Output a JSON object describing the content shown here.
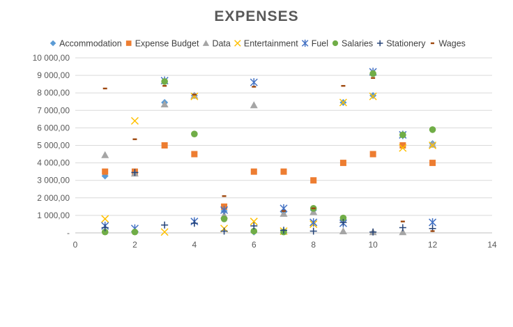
{
  "chart_data": {
    "type": "scatter",
    "title": "EXPENSES",
    "xlabel": "",
    "ylabel": "",
    "xlim": [
      0,
      14
    ],
    "ylim": [
      0,
      10000
    ],
    "x_ticks": [
      "0",
      "2",
      "4",
      "6",
      "8",
      "10",
      "12",
      "14"
    ],
    "y_ticks": [
      "-",
      "1 000,00",
      "2 000,00",
      "3 000,00",
      "4 000,00",
      "5 000,00",
      "6 000,00",
      "7 000,00",
      "8 000,00",
      "9 000,00",
      "10 000,00"
    ],
    "legend_position": "top",
    "grid": true,
    "series": [
      {
        "name": "Accommodation",
        "marker": "diamond",
        "color": "#5b9bd5",
        "points": [
          [
            1,
            3250
          ],
          [
            2,
            3450
          ],
          [
            3,
            7450
          ],
          [
            4,
            7850
          ],
          [
            5,
            1250
          ],
          [
            6,
            50
          ],
          [
            7,
            1200
          ],
          [
            8,
            1300
          ],
          [
            9,
            7450
          ],
          [
            10,
            7850
          ],
          [
            11,
            5600
          ],
          [
            12,
            5100
          ]
        ]
      },
      {
        "name": "Expense Budget",
        "marker": "square",
        "color": "#ed7d31",
        "points": [
          [
            1,
            3500
          ],
          [
            2,
            3500
          ],
          [
            3,
            5000
          ],
          [
            4,
            4500
          ],
          [
            5,
            1500
          ],
          [
            6,
            3500
          ],
          [
            7,
            3500
          ],
          [
            8,
            3000
          ],
          [
            9,
            4000
          ],
          [
            10,
            4500
          ],
          [
            11,
            5000
          ],
          [
            12,
            4000
          ]
        ]
      },
      {
        "name": "Data",
        "marker": "triangle",
        "color": "#a5a5a5",
        "points": [
          [
            1,
            4450
          ],
          [
            2,
            3400
          ],
          [
            3,
            7350
          ],
          [
            4,
            7850
          ],
          [
            5,
            1000
          ],
          [
            6,
            7300
          ],
          [
            7,
            1100
          ],
          [
            8,
            1200
          ],
          [
            9,
            100
          ],
          [
            10,
            50
          ],
          [
            11,
            50
          ],
          [
            12,
            5050
          ]
        ]
      },
      {
        "name": "Entertainment",
        "marker": "x",
        "color": "#ffc000",
        "points": [
          [
            1,
            800
          ],
          [
            2,
            6400
          ],
          [
            3,
            50
          ],
          [
            4,
            7800
          ],
          [
            5,
            250
          ],
          [
            6,
            650
          ],
          [
            7,
            100
          ],
          [
            8,
            500
          ],
          [
            9,
            7450
          ],
          [
            10,
            7800
          ],
          [
            11,
            4850
          ],
          [
            12,
            5000
          ]
        ]
      },
      {
        "name": "Fuel",
        "marker": "star",
        "color": "#4472c4",
        "points": [
          [
            1,
            400
          ],
          [
            2,
            250
          ],
          [
            3,
            8700
          ],
          [
            4,
            650
          ],
          [
            5,
            1300
          ],
          [
            6,
            8600
          ],
          [
            7,
            1400
          ],
          [
            8,
            600
          ],
          [
            9,
            550
          ],
          [
            10,
            9200
          ],
          [
            11,
            5600
          ],
          [
            12,
            600
          ]
        ]
      },
      {
        "name": "Salaries",
        "marker": "circle",
        "color": "#70ad47",
        "points": [
          [
            1,
            50
          ],
          [
            2,
            50
          ],
          [
            3,
            8650
          ],
          [
            4,
            5650
          ],
          [
            5,
            800
          ],
          [
            6,
            100
          ],
          [
            7,
            50
          ],
          [
            8,
            1400
          ],
          [
            9,
            850
          ],
          [
            10,
            9100
          ],
          [
            11,
            5600
          ],
          [
            12,
            5900
          ]
        ]
      },
      {
        "name": "Stationery",
        "marker": "plus",
        "color": "#264478",
        "points": [
          [
            1,
            300
          ],
          [
            2,
            3450
          ],
          [
            3,
            450
          ],
          [
            4,
            550
          ],
          [
            5,
            100
          ],
          [
            6,
            400
          ],
          [
            7,
            150
          ],
          [
            8,
            100
          ],
          [
            9,
            600
          ],
          [
            10,
            50
          ],
          [
            11,
            300
          ],
          [
            12,
            250
          ]
        ]
      },
      {
        "name": "Wages",
        "marker": "dash",
        "color": "#9e480e",
        "points": [
          [
            1,
            8250
          ],
          [
            2,
            5350
          ],
          [
            3,
            8400
          ],
          [
            4,
            7900
          ],
          [
            5,
            2100
          ],
          [
            6,
            8350
          ],
          [
            7,
            1250
          ],
          [
            8,
            1400
          ],
          [
            9,
            8400
          ],
          [
            10,
            8850
          ],
          [
            11,
            650
          ],
          [
            12,
            100
          ]
        ]
      }
    ]
  }
}
